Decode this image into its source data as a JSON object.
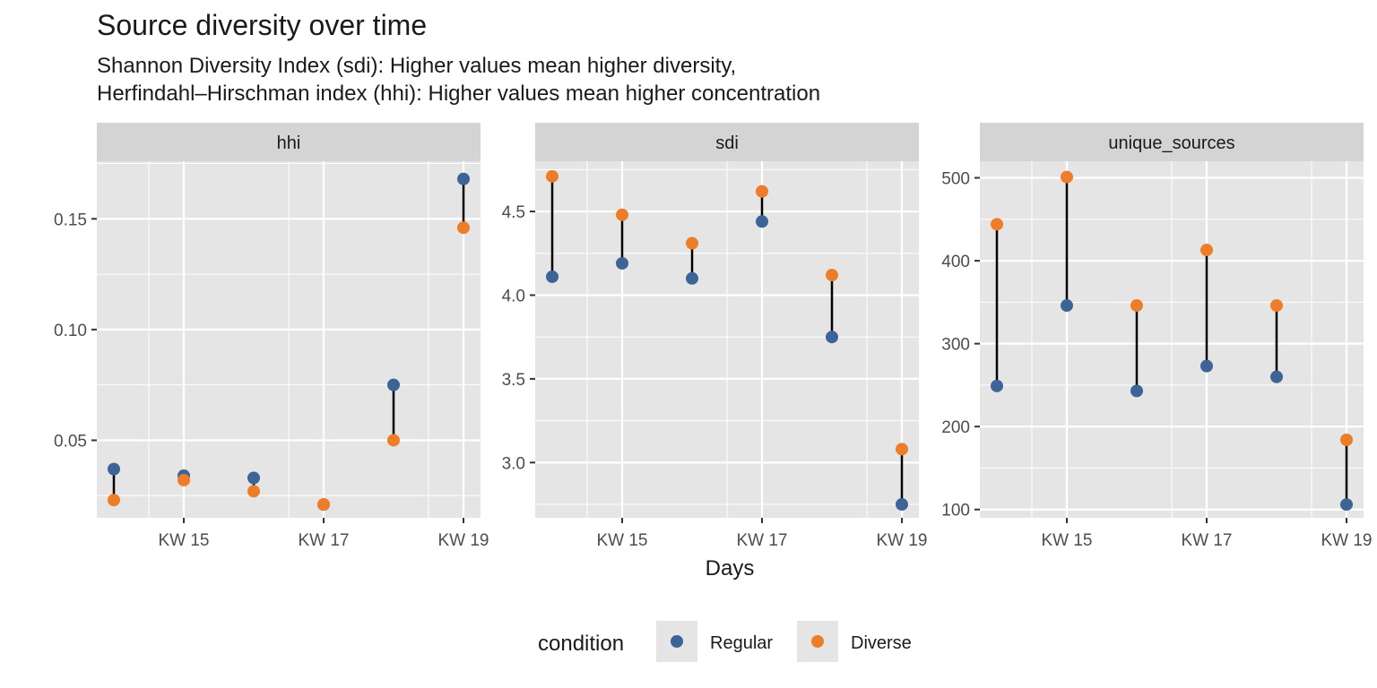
{
  "title": "Source diversity over time",
  "subtitle_lines": [
    "Shannon Diversity Index (sdi): Higher values mean higher diversity,",
    "Herfindahl–Hirschman index (hhi): Higher values mean higher concentration"
  ],
  "colors": {
    "Regular": "#3d6496",
    "Diverse": "#ed7d28",
    "panel_bg": "#e5e5e5",
    "strip_bg": "#d4d4d4",
    "grid": "#ffffff"
  },
  "chart_data": {
    "type": "scatter",
    "subtype": "faceted dumbbell",
    "xlabel": "Days",
    "ylabel": "",
    "x_tick_labels": [
      "KW 15",
      "KW 17",
      "KW 19"
    ],
    "x_categories": [
      1,
      2,
      3,
      4,
      5,
      6
    ],
    "legend": {
      "title": "condition",
      "position": "bottom",
      "entries": [
        "Regular",
        "Diverse"
      ]
    },
    "grid": true,
    "panels": [
      {
        "name": "hhi",
        "ylim": [
          0.015,
          0.176
        ],
        "y_ticks": [
          0.05,
          0.1,
          0.15
        ],
        "y_tick_labels": [
          "0.05",
          "0.10",
          "0.15"
        ],
        "series": [
          {
            "name": "Regular",
            "values": [
              0.037,
              0.034,
              0.033,
              0.021,
              0.075,
              0.168
            ]
          },
          {
            "name": "Diverse",
            "values": [
              0.023,
              0.032,
              0.027,
              0.021,
              0.05,
              0.146
            ]
          }
        ]
      },
      {
        "name": "sdi",
        "ylim": [
          2.67,
          4.8
        ],
        "y_ticks": [
          3.0,
          3.5,
          4.0,
          4.5
        ],
        "y_tick_labels": [
          "3.0",
          "3.5",
          "4.0",
          "4.5"
        ],
        "series": [
          {
            "name": "Regular",
            "values": [
              4.11,
              4.19,
              4.1,
              4.44,
              3.75,
              2.75
            ]
          },
          {
            "name": "Diverse",
            "values": [
              4.71,
              4.48,
              4.31,
              4.62,
              4.12,
              3.08
            ]
          }
        ]
      },
      {
        "name": "unique_sources",
        "ylim": [
          90,
          520
        ],
        "y_ticks": [
          100,
          200,
          300,
          400,
          500
        ],
        "y_tick_labels": [
          "100",
          "200",
          "300",
          "400",
          "500"
        ],
        "series": [
          {
            "name": "Regular",
            "values": [
              249,
              346,
              243,
              273,
              260,
              106
            ]
          },
          {
            "name": "Diverse",
            "values": [
              444,
              501,
              346,
              413,
              346,
              184
            ]
          }
        ]
      }
    ]
  }
}
